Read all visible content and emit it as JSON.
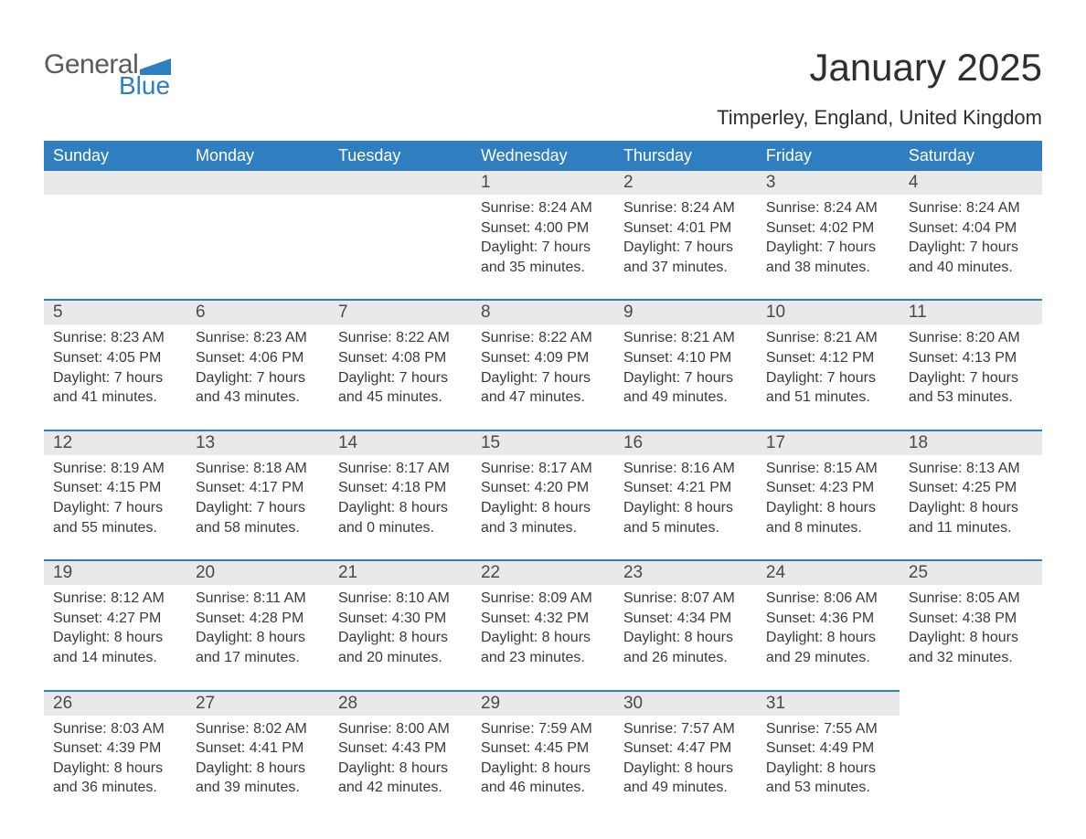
{
  "logo": {
    "general": "General",
    "blue": "Blue",
    "flag_color": "#2f7ec0"
  },
  "title": "January 2025",
  "location": "Timperley, England, United Kingdom",
  "colors": {
    "header_bg": "#2f7ec0",
    "header_text": "#ffffff",
    "daynum_bg": "#e9e9e9",
    "row_border": "#2f7ec0",
    "text": "#3a3a3a",
    "title_text": "#2f2f2f"
  },
  "typography": {
    "title_fontsize": 42,
    "location_fontsize": 22,
    "header_fontsize": 18,
    "daynum_fontsize": 19,
    "body_fontsize": 16
  },
  "day_names": [
    "Sunday",
    "Monday",
    "Tuesday",
    "Wednesday",
    "Thursday",
    "Friday",
    "Saturday"
  ],
  "weeks": [
    [
      null,
      null,
      null,
      {
        "n": "1",
        "sunrise": "Sunrise: 8:24 AM",
        "sunset": "Sunset: 4:00 PM",
        "d1": "Daylight: 7 hours",
        "d2": "and 35 minutes."
      },
      {
        "n": "2",
        "sunrise": "Sunrise: 8:24 AM",
        "sunset": "Sunset: 4:01 PM",
        "d1": "Daylight: 7 hours",
        "d2": "and 37 minutes."
      },
      {
        "n": "3",
        "sunrise": "Sunrise: 8:24 AM",
        "sunset": "Sunset: 4:02 PM",
        "d1": "Daylight: 7 hours",
        "d2": "and 38 minutes."
      },
      {
        "n": "4",
        "sunrise": "Sunrise: 8:24 AM",
        "sunset": "Sunset: 4:04 PM",
        "d1": "Daylight: 7 hours",
        "d2": "and 40 minutes."
      }
    ],
    [
      {
        "n": "5",
        "sunrise": "Sunrise: 8:23 AM",
        "sunset": "Sunset: 4:05 PM",
        "d1": "Daylight: 7 hours",
        "d2": "and 41 minutes."
      },
      {
        "n": "6",
        "sunrise": "Sunrise: 8:23 AM",
        "sunset": "Sunset: 4:06 PM",
        "d1": "Daylight: 7 hours",
        "d2": "and 43 minutes."
      },
      {
        "n": "7",
        "sunrise": "Sunrise: 8:22 AM",
        "sunset": "Sunset: 4:08 PM",
        "d1": "Daylight: 7 hours",
        "d2": "and 45 minutes."
      },
      {
        "n": "8",
        "sunrise": "Sunrise: 8:22 AM",
        "sunset": "Sunset: 4:09 PM",
        "d1": "Daylight: 7 hours",
        "d2": "and 47 minutes."
      },
      {
        "n": "9",
        "sunrise": "Sunrise: 8:21 AM",
        "sunset": "Sunset: 4:10 PM",
        "d1": "Daylight: 7 hours",
        "d2": "and 49 minutes."
      },
      {
        "n": "10",
        "sunrise": "Sunrise: 8:21 AM",
        "sunset": "Sunset: 4:12 PM",
        "d1": "Daylight: 7 hours",
        "d2": "and 51 minutes."
      },
      {
        "n": "11",
        "sunrise": "Sunrise: 8:20 AM",
        "sunset": "Sunset: 4:13 PM",
        "d1": "Daylight: 7 hours",
        "d2": "and 53 minutes."
      }
    ],
    [
      {
        "n": "12",
        "sunrise": "Sunrise: 8:19 AM",
        "sunset": "Sunset: 4:15 PM",
        "d1": "Daylight: 7 hours",
        "d2": "and 55 minutes."
      },
      {
        "n": "13",
        "sunrise": "Sunrise: 8:18 AM",
        "sunset": "Sunset: 4:17 PM",
        "d1": "Daylight: 7 hours",
        "d2": "and 58 minutes."
      },
      {
        "n": "14",
        "sunrise": "Sunrise: 8:17 AM",
        "sunset": "Sunset: 4:18 PM",
        "d1": "Daylight: 8 hours",
        "d2": "and 0 minutes."
      },
      {
        "n": "15",
        "sunrise": "Sunrise: 8:17 AM",
        "sunset": "Sunset: 4:20 PM",
        "d1": "Daylight: 8 hours",
        "d2": "and 3 minutes."
      },
      {
        "n": "16",
        "sunrise": "Sunrise: 8:16 AM",
        "sunset": "Sunset: 4:21 PM",
        "d1": "Daylight: 8 hours",
        "d2": "and 5 minutes."
      },
      {
        "n": "17",
        "sunrise": "Sunrise: 8:15 AM",
        "sunset": "Sunset: 4:23 PM",
        "d1": "Daylight: 8 hours",
        "d2": "and 8 minutes."
      },
      {
        "n": "18",
        "sunrise": "Sunrise: 8:13 AM",
        "sunset": "Sunset: 4:25 PM",
        "d1": "Daylight: 8 hours",
        "d2": "and 11 minutes."
      }
    ],
    [
      {
        "n": "19",
        "sunrise": "Sunrise: 8:12 AM",
        "sunset": "Sunset: 4:27 PM",
        "d1": "Daylight: 8 hours",
        "d2": "and 14 minutes."
      },
      {
        "n": "20",
        "sunrise": "Sunrise: 8:11 AM",
        "sunset": "Sunset: 4:28 PM",
        "d1": "Daylight: 8 hours",
        "d2": "and 17 minutes."
      },
      {
        "n": "21",
        "sunrise": "Sunrise: 8:10 AM",
        "sunset": "Sunset: 4:30 PM",
        "d1": "Daylight: 8 hours",
        "d2": "and 20 minutes."
      },
      {
        "n": "22",
        "sunrise": "Sunrise: 8:09 AM",
        "sunset": "Sunset: 4:32 PM",
        "d1": "Daylight: 8 hours",
        "d2": "and 23 minutes."
      },
      {
        "n": "23",
        "sunrise": "Sunrise: 8:07 AM",
        "sunset": "Sunset: 4:34 PM",
        "d1": "Daylight: 8 hours",
        "d2": "and 26 minutes."
      },
      {
        "n": "24",
        "sunrise": "Sunrise: 8:06 AM",
        "sunset": "Sunset: 4:36 PM",
        "d1": "Daylight: 8 hours",
        "d2": "and 29 minutes."
      },
      {
        "n": "25",
        "sunrise": "Sunrise: 8:05 AM",
        "sunset": "Sunset: 4:38 PM",
        "d1": "Daylight: 8 hours",
        "d2": "and 32 minutes."
      }
    ],
    [
      {
        "n": "26",
        "sunrise": "Sunrise: 8:03 AM",
        "sunset": "Sunset: 4:39 PM",
        "d1": "Daylight: 8 hours",
        "d2": "and 36 minutes."
      },
      {
        "n": "27",
        "sunrise": "Sunrise: 8:02 AM",
        "sunset": "Sunset: 4:41 PM",
        "d1": "Daylight: 8 hours",
        "d2": "and 39 minutes."
      },
      {
        "n": "28",
        "sunrise": "Sunrise: 8:00 AM",
        "sunset": "Sunset: 4:43 PM",
        "d1": "Daylight: 8 hours",
        "d2": "and 42 minutes."
      },
      {
        "n": "29",
        "sunrise": "Sunrise: 7:59 AM",
        "sunset": "Sunset: 4:45 PM",
        "d1": "Daylight: 8 hours",
        "d2": "and 46 minutes."
      },
      {
        "n": "30",
        "sunrise": "Sunrise: 7:57 AM",
        "sunset": "Sunset: 4:47 PM",
        "d1": "Daylight: 8 hours",
        "d2": "and 49 minutes."
      },
      {
        "n": "31",
        "sunrise": "Sunrise: 7:55 AM",
        "sunset": "Sunset: 4:49 PM",
        "d1": "Daylight: 8 hours",
        "d2": "and 53 minutes."
      },
      null
    ]
  ]
}
